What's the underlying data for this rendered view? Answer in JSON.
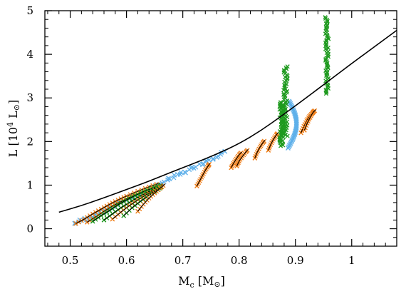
{
  "chart_data": {
    "type": "scatter",
    "title": "",
    "xlabel": {
      "main": "M",
      "sub": "c",
      "rest": " [M",
      "sun": "⊙",
      "close": "]"
    },
    "ylabel": {
      "main": "L  [10",
      "sup": "4",
      "mid": " L",
      "sun": "⊙",
      "close": "]"
    },
    "xlim": [
      0.455,
      1.08
    ],
    "ylim": [
      -0.4,
      5.0
    ],
    "xticks": [
      0.5,
      0.6,
      0.7,
      0.8,
      0.9,
      1.0
    ],
    "xtick_labels": [
      "0.5",
      "0.6",
      "0.7",
      "0.8",
      "0.9",
      "1"
    ],
    "yticks": [
      0,
      1,
      2,
      3,
      4,
      5
    ],
    "ytick_labels": [
      "0",
      "1",
      "2",
      "3",
      "4",
      "5"
    ],
    "grid": false,
    "colors": {
      "relation": "#000000",
      "orange_series": "#f07f1a",
      "green_series": "#1f9a1f",
      "blue_series": "#5fb0ea",
      "track": "#000000"
    },
    "relation_curve": [
      [
        0.48,
        0.38
      ],
      [
        0.52,
        0.53
      ],
      [
        0.56,
        0.71
      ],
      [
        0.6,
        0.9
      ],
      [
        0.64,
        1.09
      ],
      [
        0.68,
        1.3
      ],
      [
        0.72,
        1.5
      ],
      [
        0.76,
        1.71
      ],
      [
        0.8,
        1.95
      ],
      [
        0.84,
        2.26
      ],
      [
        0.88,
        2.63
      ],
      [
        0.92,
        3.01
      ],
      [
        0.96,
        3.4
      ],
      [
        1.0,
        3.79
      ],
      [
        1.04,
        4.17
      ],
      [
        1.08,
        4.55
      ]
    ],
    "model_tracks": [
      {
        "color": "orange",
        "points": [
          [
            0.51,
            0.12
          ],
          [
            0.525,
            0.22
          ],
          [
            0.54,
            0.34
          ],
          [
            0.555,
            0.45
          ],
          [
            0.57,
            0.56
          ],
          [
            0.585,
            0.66
          ],
          [
            0.6,
            0.75
          ],
          [
            0.62,
            0.86
          ],
          [
            0.64,
            0.96
          ],
          [
            0.66,
            1.05
          ]
        ]
      },
      {
        "color": "orange",
        "points": [
          [
            0.53,
            0.15
          ],
          [
            0.545,
            0.27
          ],
          [
            0.56,
            0.4
          ],
          [
            0.575,
            0.52
          ],
          [
            0.59,
            0.62
          ],
          [
            0.605,
            0.72
          ],
          [
            0.62,
            0.8
          ],
          [
            0.64,
            0.9
          ],
          [
            0.66,
            0.98
          ]
        ]
      },
      {
        "color": "green",
        "points": [
          [
            0.54,
            0.17
          ],
          [
            0.555,
            0.3
          ],
          [
            0.57,
            0.42
          ],
          [
            0.585,
            0.55
          ],
          [
            0.6,
            0.66
          ],
          [
            0.615,
            0.76
          ],
          [
            0.63,
            0.85
          ],
          [
            0.65,
            0.95
          ],
          [
            0.665,
            1.02
          ]
        ]
      },
      {
        "color": "green",
        "points": [
          [
            0.56,
            0.2
          ],
          [
            0.575,
            0.34
          ],
          [
            0.59,
            0.48
          ],
          [
            0.605,
            0.6
          ],
          [
            0.62,
            0.72
          ],
          [
            0.635,
            0.82
          ],
          [
            0.65,
            0.92
          ],
          [
            0.665,
            1.0
          ]
        ]
      },
      {
        "color": "orange",
        "points": [
          [
            0.575,
            0.22
          ],
          [
            0.59,
            0.38
          ],
          [
            0.605,
            0.53
          ],
          [
            0.62,
            0.66
          ],
          [
            0.635,
            0.78
          ],
          [
            0.65,
            0.88
          ],
          [
            0.665,
            0.98
          ]
        ]
      },
      {
        "color": "green",
        "points": [
          [
            0.595,
            0.3
          ],
          [
            0.61,
            0.48
          ],
          [
            0.625,
            0.63
          ],
          [
            0.64,
            0.77
          ],
          [
            0.655,
            0.9
          ],
          [
            0.665,
            0.98
          ]
        ]
      },
      {
        "color": "orange",
        "points": [
          [
            0.62,
            0.4
          ],
          [
            0.63,
            0.56
          ],
          [
            0.64,
            0.7
          ],
          [
            0.65,
            0.82
          ],
          [
            0.66,
            0.93
          ],
          [
            0.668,
            1.02
          ]
        ]
      },
      {
        "color": "orange",
        "points": [
          [
            0.725,
            0.98
          ],
          [
            0.73,
            1.1
          ],
          [
            0.735,
            1.22
          ],
          [
            0.74,
            1.34
          ],
          [
            0.745,
            1.44
          ],
          [
            0.748,
            1.5
          ]
        ]
      },
      {
        "color": "orange",
        "points": [
          [
            0.786,
            1.4
          ],
          [
            0.79,
            1.5
          ],
          [
            0.795,
            1.6
          ],
          [
            0.8,
            1.7
          ],
          [
            0.805,
            1.76
          ]
        ]
      },
      {
        "color": "orange",
        "points": [
          [
            0.796,
            1.44
          ],
          [
            0.8,
            1.55
          ],
          [
            0.806,
            1.66
          ],
          [
            0.812,
            1.76
          ],
          [
            0.816,
            1.82
          ]
        ]
      },
      {
        "color": "orange",
        "points": [
          [
            0.828,
            1.62
          ],
          [
            0.832,
            1.75
          ],
          [
            0.837,
            1.87
          ],
          [
            0.842,
            1.97
          ],
          [
            0.846,
            2.03
          ]
        ]
      },
      {
        "color": "orange",
        "points": [
          [
            0.852,
            1.8
          ],
          [
            0.856,
            1.93
          ],
          [
            0.861,
            2.05
          ],
          [
            0.866,
            2.15
          ],
          [
            0.869,
            2.2
          ]
        ]
      },
      {
        "color": "orange",
        "points": [
          [
            0.91,
            2.2
          ],
          [
            0.915,
            2.35
          ],
          [
            0.92,
            2.48
          ],
          [
            0.925,
            2.58
          ],
          [
            0.93,
            2.65
          ],
          [
            0.934,
            2.72
          ]
        ]
      },
      {
        "color": "orange",
        "points": [
          [
            0.916,
            2.26
          ],
          [
            0.921,
            2.42
          ],
          [
            0.926,
            2.55
          ],
          [
            0.931,
            2.66
          ],
          [
            0.936,
            2.73
          ]
        ]
      }
    ],
    "blue_band": {
      "from": [
        0.508,
        0.12
      ],
      "to": [
        0.775,
        1.76
      ],
      "bulge": 0.0
    },
    "green_spikes": [
      {
        "x": [
          0.868,
          0.882
        ],
        "base": 1.9,
        "peak": 2.9
      },
      {
        "x": [
          0.875,
          0.89
        ],
        "base": 2.1,
        "peak": 3.72
      },
      {
        "x": [
          0.95,
          0.962
        ],
        "base": 3.1,
        "peak": 4.85
      }
    ],
    "blue_cluster": {
      "x": [
        0.872,
        0.902
      ],
      "y": [
        1.85,
        2.95
      ]
    }
  }
}
